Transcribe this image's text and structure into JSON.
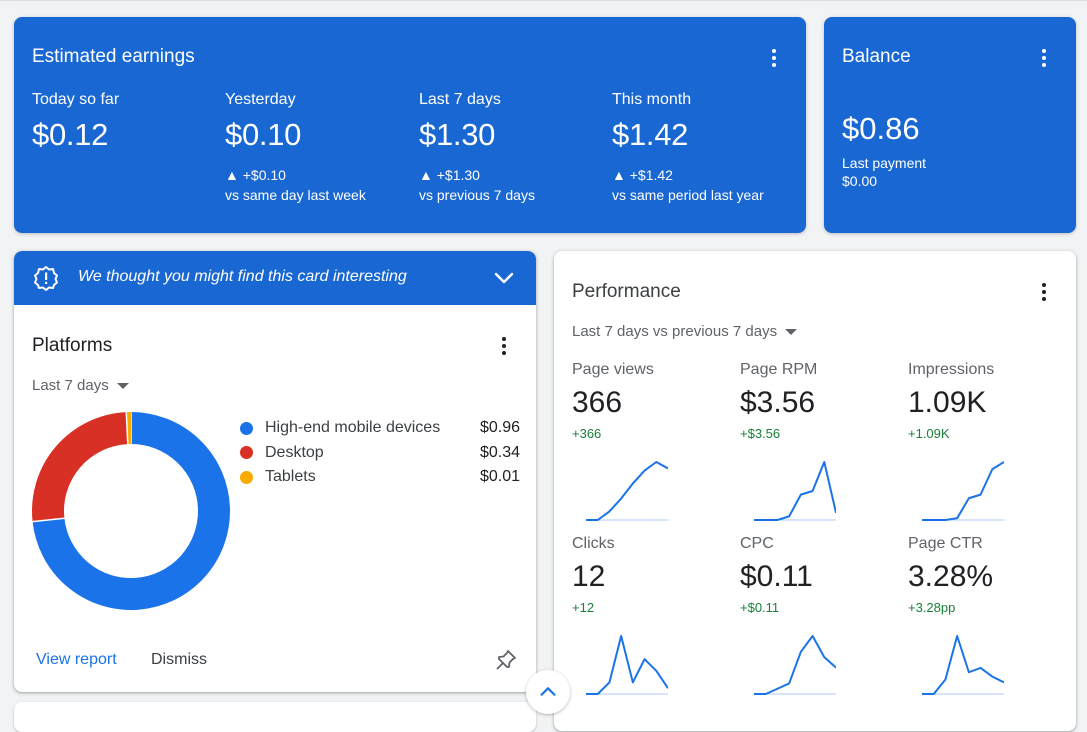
{
  "earnings": {
    "title": "Estimated earnings",
    "metrics": [
      {
        "label": "Today so far",
        "value": "$0.12",
        "change": "",
        "compare": ""
      },
      {
        "label": "Yesterday",
        "value": "$0.10",
        "change": "▲ +$0.10",
        "compare": "vs same day last week"
      },
      {
        "label": "Last 7 days",
        "value": "$1.30",
        "change": "▲ +$1.30",
        "compare": "vs previous 7 days"
      },
      {
        "label": "This month",
        "value": "$1.42",
        "change": "▲ +$1.42",
        "compare": "vs same period last year"
      }
    ]
  },
  "balance": {
    "title": "Balance",
    "value": "$0.86",
    "last_payment_label": "Last payment",
    "last_payment_value": "$0.00"
  },
  "banner": {
    "text": "We thought you might find this card interesting",
    "icon": "alert-badge-icon",
    "expand_icon": "chevron-down-icon"
  },
  "platforms": {
    "title": "Platforms",
    "range": "Last 7 days",
    "items": [
      {
        "name": "High-end mobile devices",
        "amount": "$0.96",
        "value": 0.96,
        "color": "#1a73e8"
      },
      {
        "name": "Desktop",
        "amount": "$0.34",
        "value": 0.34,
        "color": "#d93025"
      },
      {
        "name": "Tablets",
        "amount": "$0.01",
        "value": 0.01,
        "color": "#f9ab00"
      }
    ],
    "view_report": "View report",
    "dismiss": "Dismiss",
    "pin_icon": "pin-icon"
  },
  "performance": {
    "title": "Performance",
    "range": "Last 7 days vs previous 7 days",
    "metrics": [
      {
        "label": "Page views",
        "value": "366",
        "change": "+366",
        "spark": [
          0,
          0,
          40,
          100,
          170,
          230,
          270,
          240
        ]
      },
      {
        "label": "Page RPM",
        "value": "$3.56",
        "change": "+$3.56",
        "spark": [
          0,
          0,
          0,
          10,
          70,
          80,
          160,
          20
        ]
      },
      {
        "label": "Impressions",
        "value": "1.09K",
        "change": "+1.09K",
        "spark": [
          0,
          0,
          0,
          5,
          60,
          70,
          140,
          160
        ]
      },
      {
        "label": "Clicks",
        "value": "12",
        "change": "+12",
        "spark": [
          0,
          0,
          1,
          5,
          1,
          3,
          2,
          0.5
        ]
      },
      {
        "label": "CPC",
        "value": "$0.11",
        "change": "+$0.11",
        "spark": [
          0,
          0,
          0.01,
          0.02,
          0.08,
          0.11,
          0.07,
          0.05
        ]
      },
      {
        "label": "Page CTR",
        "value": "3.28%",
        "change": "+3.28pp",
        "spark": [
          0,
          0,
          1,
          4,
          1.5,
          1.8,
          1.2,
          0.8
        ]
      }
    ]
  },
  "colors": {
    "brand_blue": "#1967d2",
    "spark_line": "#1a73e8",
    "positive": "#188038"
  }
}
